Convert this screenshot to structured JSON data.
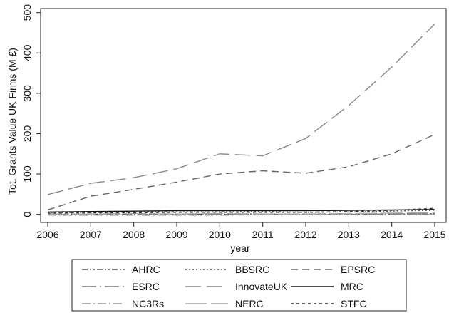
{
  "chart_data": {
    "type": "line",
    "title": "",
    "xlabel": "year",
    "ylabel": "Tot. Grants Value UK Firms (M £)",
    "x": [
      2006,
      2007,
      2008,
      2009,
      2010,
      2011,
      2012,
      2013,
      2014,
      2015
    ],
    "xlim": [
      2006,
      2015
    ],
    "ylim": [
      -20,
      510
    ],
    "yticks": [
      0,
      100,
      200,
      300,
      400,
      500
    ],
    "grid": false,
    "legend_position": "bottom",
    "series": [
      {
        "name": "AHRC",
        "color": "#555555",
        "dash": "dash-dot-dot",
        "values": [
          0.5,
          0.5,
          0.6,
          0.7,
          0.6,
          0.5,
          0.5,
          0.7,
          0.8,
          1.0
        ]
      },
      {
        "name": "BBSRC",
        "color": "#555555",
        "dash": "dotted",
        "values": [
          4,
          5,
          6,
          6,
          6,
          7,
          5,
          6,
          8,
          10
        ]
      },
      {
        "name": "EPSRC",
        "color": "#666666",
        "dash": "dashed",
        "values": [
          11,
          45,
          62,
          80,
          100,
          108,
          102,
          118,
          150,
          198
        ]
      },
      {
        "name": "ESRC",
        "color": "#777777",
        "dash": "long-dash-dot",
        "values": [
          -1,
          -1,
          -1,
          -1,
          0,
          -1,
          -1,
          0,
          1,
          2
        ]
      },
      {
        "name": "InnovateUK",
        "color": "#888888",
        "dash": "long-dash",
        "values": [
          49,
          77,
          91,
          113,
          150,
          145,
          188,
          270,
          365,
          472
        ]
      },
      {
        "name": "MRC",
        "color": "#111111",
        "dash": "solid",
        "values": [
          6,
          7,
          8,
          9,
          9,
          9,
          9,
          10,
          11,
          12
        ]
      },
      {
        "name": "NC3Rs",
        "color": "#999999",
        "dash": "dash-dot",
        "values": [
          -2,
          -2,
          -2,
          -2,
          -2,
          -1,
          -1,
          -1,
          -1,
          0
        ]
      },
      {
        "name": "NERC",
        "color": "#aaaaaa",
        "dash": "very-long-dash",
        "values": [
          1,
          1,
          2,
          1,
          2,
          1,
          1,
          2,
          3,
          4
        ]
      },
      {
        "name": "STFC",
        "color": "#333333",
        "dash": "short-dash",
        "values": [
          3,
          4,
          4,
          5,
          5,
          5,
          5,
          7,
          10,
          15
        ]
      }
    ]
  }
}
